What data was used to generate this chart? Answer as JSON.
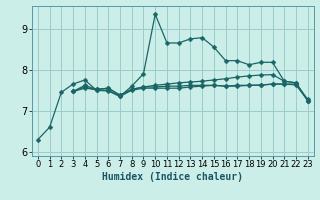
{
  "xlabel": "Humidex (Indice chaleur)",
  "bg_color": "#cceee8",
  "grid_color": "#99cccc",
  "line_color": "#1a6666",
  "xlim": [
    -0.5,
    23.5
  ],
  "ylim": [
    5.9,
    9.55
  ],
  "yticks": [
    6,
    7,
    8,
    9
  ],
  "xticks": [
    0,
    1,
    2,
    3,
    4,
    5,
    6,
    7,
    8,
    9,
    10,
    11,
    12,
    13,
    14,
    15,
    16,
    17,
    18,
    19,
    20,
    21,
    22,
    23
  ],
  "line1": [
    6.3,
    6.6,
    7.45,
    7.65,
    7.75,
    7.5,
    7.5,
    7.35,
    7.6,
    7.9,
    9.35,
    8.65,
    8.65,
    8.75,
    8.78,
    8.55,
    8.22,
    8.22,
    8.12,
    8.18,
    8.18,
    7.72,
    7.68,
    7.25
  ],
  "line2": [
    null,
    null,
    null,
    7.47,
    7.55,
    7.52,
    7.55,
    7.38,
    7.52,
    7.58,
    7.62,
    7.65,
    7.68,
    7.7,
    7.72,
    7.75,
    7.78,
    7.82,
    7.85,
    7.87,
    7.88,
    7.72,
    7.68,
    7.25
  ],
  "line3": [
    null,
    null,
    null,
    7.47,
    7.58,
    7.5,
    7.48,
    7.35,
    7.5,
    7.55,
    7.55,
    7.55,
    7.55,
    7.58,
    7.6,
    7.62,
    7.6,
    7.62,
    7.62,
    7.63,
    7.65,
    7.65,
    7.63,
    7.25
  ],
  "line4": [
    null,
    null,
    null,
    7.47,
    7.62,
    7.52,
    7.55,
    7.38,
    7.52,
    7.58,
    7.58,
    7.6,
    7.6,
    7.62,
    7.62,
    7.62,
    7.6,
    7.6,
    7.62,
    7.62,
    7.65,
    7.65,
    7.65,
    7.28
  ],
  "xlabel_fontsize": 7,
  "tick_fontsize": 6
}
